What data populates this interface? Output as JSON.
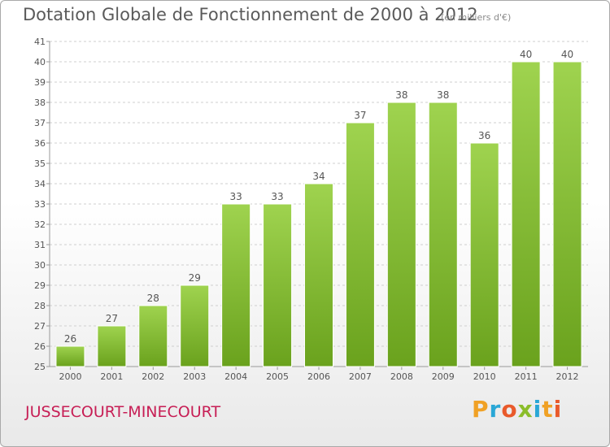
{
  "header": {
    "title": "Dotation Globale de Fonctionnement de 2000 à 2012",
    "unit": "(en milliers d'€)"
  },
  "footer": {
    "place": "JUSSECOURT-MINECOURT",
    "logo": "Proxiti"
  },
  "colors": {
    "bar_top": "#9fd34f",
    "bar_bottom": "#6aa21d",
    "grid": "#cfcfcf",
    "axis": "#999999",
    "place": "#c71e55"
  },
  "chart_data": {
    "type": "bar",
    "title": "Dotation Globale de Fonctionnement de 2000 à 2012",
    "subtitle": "(en milliers d'€)",
    "categories": [
      "2000",
      "2001",
      "2002",
      "2003",
      "2004",
      "2005",
      "2006",
      "2007",
      "2008",
      "2009",
      "2010",
      "2011",
      "2012"
    ],
    "values": [
      26,
      27,
      28,
      29,
      33,
      33,
      34,
      37,
      38,
      38,
      36,
      40,
      40
    ],
    "ylim": [
      25,
      41
    ],
    "yticks": [
      25,
      26,
      27,
      28,
      29,
      30,
      31,
      32,
      33,
      34,
      35,
      36,
      37,
      38,
      39,
      40,
      41
    ],
    "grid": "horizontal dashed",
    "legend": "none"
  }
}
